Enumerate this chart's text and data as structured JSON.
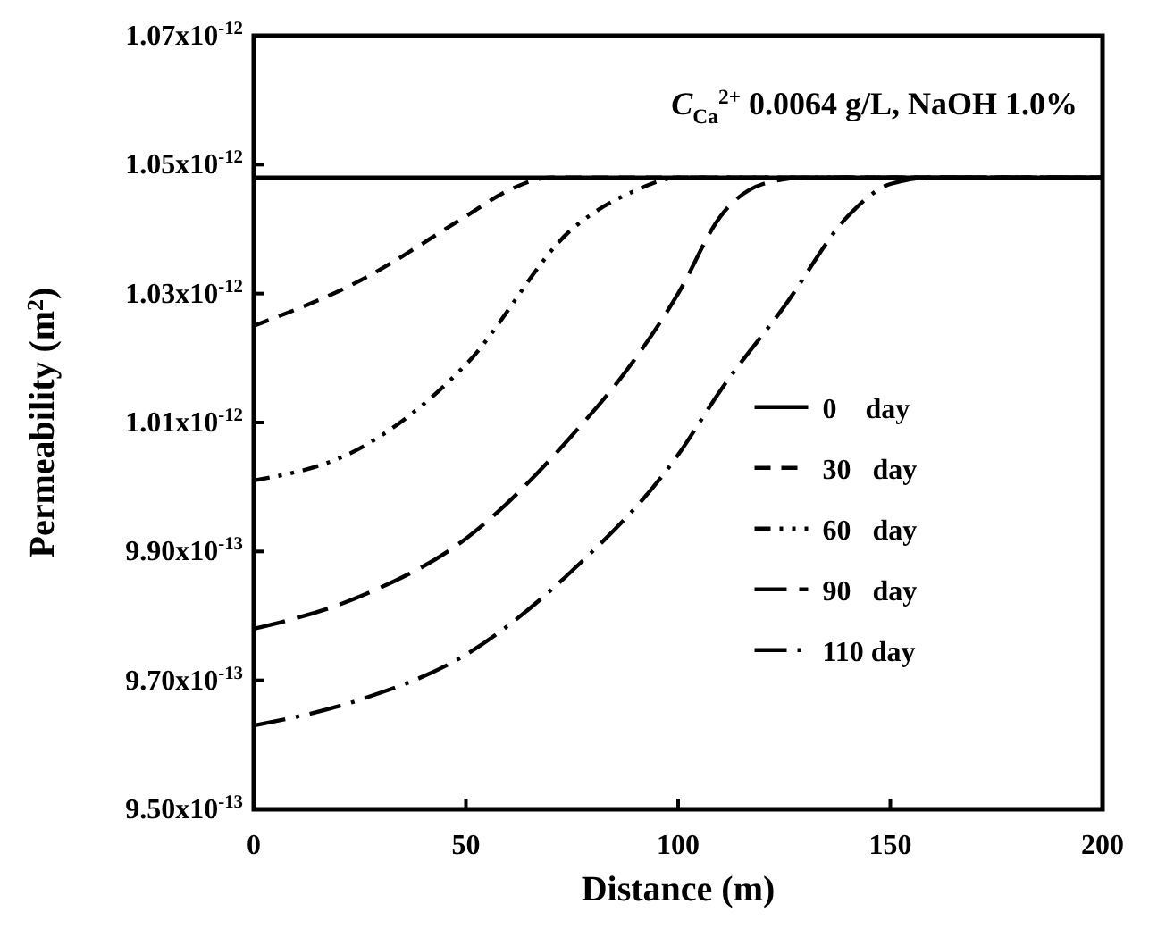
{
  "chart_data": {
    "type": "line",
    "xlabel": "Distance (m)",
    "ylabel": "Permeability (m$^{2}$)",
    "annotations": [
      "C$_{Ca}$$^{2+}$  0.0064 g/L, NaOH 1.0%"
    ],
    "xlim": [
      0,
      200
    ],
    "xticks": [
      0,
      50,
      100,
      150,
      200
    ],
    "ylim": [
      9.5e-13,
      1.07e-12
    ],
    "yticks": [
      {
        "value": 9.5e-13,
        "label": "9.50x10$^{-13}$"
      },
      {
        "value": 9.7e-13,
        "label": "9.70x10$^{-13}$"
      },
      {
        "value": 9.9e-13,
        "label": "9.90x10$^{-13}$"
      },
      {
        "value": 1.01e-12,
        "label": "1.01x10$^{-12}$"
      },
      {
        "value": 1.03e-12,
        "label": "1.03x10$^{-12}$"
      },
      {
        "value": 1.05e-12,
        "label": "1.05x10$^{-12}$"
      },
      {
        "value": 1.07e-12,
        "label": "1.07x10$^{-12}$"
      }
    ],
    "grid": false,
    "legend": "right",
    "series": [
      {
        "name": "0    day",
        "color": "#000000",
        "line_style": "solid",
        "x": [
          0,
          200
        ],
        "values": [
          1.048e-12,
          1.048e-12
        ]
      },
      {
        "name": "30   day",
        "color": "#000000",
        "line_style": "dashed",
        "x": [
          0,
          25,
          50,
          60,
          70,
          200
        ],
        "values": [
          1.025e-12,
          1.032e-12,
          1.042e-12,
          1.046e-12,
          1.048e-12,
          1.048e-12
        ]
      },
      {
        "name": "60   day",
        "color": "#000000",
        "line_style": "dashdotdot",
        "x": [
          0,
          25,
          50,
          75,
          90,
          100,
          200
        ],
        "values": [
          1.001e-12,
          1.006e-12,
          1.019e-12,
          1.04e-12,
          1.046e-12,
          1.048e-12,
          1.048e-12
        ]
      },
      {
        "name": "90   day",
        "color": "#000000",
        "line_style": "longdash",
        "x": [
          0,
          25,
          50,
          75,
          90,
          100,
          110,
          120,
          130,
          200
        ],
        "values": [
          9.78e-13,
          9.83e-13,
          9.92e-13,
          1.008e-12,
          1.02e-12,
          1.03e-12,
          1.042e-12,
          1.047e-12,
          1.048e-12,
          1.048e-12
        ]
      },
      {
        "name": "110 day",
        "color": "#000000",
        "line_style": "longdashdot",
        "x": [
          0,
          25,
          50,
          75,
          100,
          110,
          125,
          140,
          150,
          160,
          200
        ],
        "values": [
          9.63e-13,
          9.67e-13,
          9.74e-13,
          9.87e-13,
          1.005e-12,
          1.015e-12,
          1.028e-12,
          1.042e-12,
          1.047e-12,
          1.048e-12,
          1.048e-12
        ]
      }
    ]
  }
}
